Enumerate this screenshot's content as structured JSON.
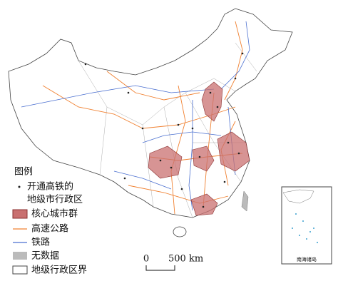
{
  "legend": {
    "title": "图例",
    "items": [
      {
        "lines": [
          "开通高铁的",
          "地级市行政区"
        ]
      },
      {
        "label": "核心城市群"
      },
      {
        "label": "高速公路"
      },
      {
        "label": "铁路"
      },
      {
        "label": "无数据"
      },
      {
        "label": "地级行政区界"
      }
    ]
  },
  "scale_bar": {
    "zero": "0",
    "distance": "500 km"
  },
  "inset": {
    "label": "南海诸岛"
  }
}
